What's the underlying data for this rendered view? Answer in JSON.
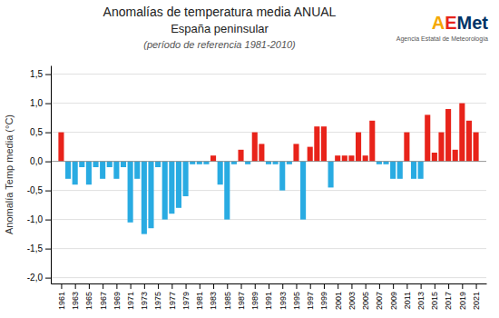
{
  "chart_data": {
    "type": "bar",
    "title": "Anomalías de temperatura media ANUAL",
    "subtitle": "España peninsular",
    "annotations": [
      "(período de referencia 1981-2010)",
      "AEMet",
      "Agencia Estatal de Meteorología"
    ],
    "y_label": "Anomalía Temp media (°C)",
    "x": [
      1961,
      1962,
      1963,
      1964,
      1965,
      1966,
      1967,
      1968,
      1969,
      1970,
      1971,
      1972,
      1973,
      1974,
      1975,
      1976,
      1977,
      1978,
      1979,
      1980,
      1981,
      1982,
      1983,
      1984,
      1985,
      1986,
      1987,
      1988,
      1989,
      1990,
      1991,
      1992,
      1993,
      1994,
      1995,
      1996,
      1997,
      1998,
      1999,
      2000,
      2001,
      2002,
      2003,
      2004,
      2005,
      2006,
      2007,
      2008,
      2009,
      2010,
      2011,
      2012,
      2013,
      2014,
      2015,
      2016,
      2017,
      2018,
      2019,
      2020,
      2021
    ],
    "values": [
      0.5,
      -0.3,
      -0.4,
      -0.1,
      -0.4,
      -0.1,
      -0.3,
      -0.1,
      -0.3,
      -0.1,
      -1.05,
      -0.3,
      -1.25,
      -1.15,
      -0.1,
      -1.0,
      -0.9,
      -0.8,
      -0.6,
      -0.05,
      -0.05,
      -0.05,
      0.1,
      -0.4,
      -1.0,
      -0.05,
      0.2,
      -0.05,
      0.5,
      0.3,
      -0.05,
      -0.05,
      -0.5,
      -0.05,
      0.3,
      -1.0,
      0.25,
      0.6,
      0.6,
      -0.45,
      0.1,
      0.1,
      0.1,
      0.5,
      0.1,
      0.7,
      -0.05,
      -0.05,
      -0.3,
      -0.3,
      0.5,
      -0.3,
      -0.3,
      0.8,
      0.15,
      0.5,
      0.9,
      0.2,
      1.0,
      0.7,
      0.5
    ],
    "colors": [
      "#e8231a",
      "#29abe2",
      "#29abe2",
      "#29abe2",
      "#29abe2",
      "#29abe2",
      "#29abe2",
      "#29abe2",
      "#29abe2",
      "#29abe2",
      "#29abe2",
      "#29abe2",
      "#29abe2",
      "#29abe2",
      "#29abe2",
      "#29abe2",
      "#29abe2",
      "#29abe2",
      "#29abe2",
      "#29abe2",
      "#29abe2",
      "#29abe2",
      "#e8231a",
      "#29abe2",
      "#29abe2",
      "#29abe2",
      "#e8231a",
      "#29abe2",
      "#e8231a",
      "#e8231a",
      "#29abe2",
      "#29abe2",
      "#29abe2",
      "#29abe2",
      "#e8231a",
      "#29abe2",
      "#e8231a",
      "#e8231a",
      "#e8231a",
      "#29abe2",
      "#e8231a",
      "#e8231a",
      "#e8231a",
      "#e8231a",
      "#e8231a",
      "#e8231a",
      "#29abe2",
      "#29abe2",
      "#29abe2",
      "#29abe2",
      "#e8231a",
      "#29abe2",
      "#29abe2",
      "#e8231a",
      "#e8231a",
      "#e8231a",
      "#e8231a",
      "#e8231a",
      "#e8231a",
      "#e8231a",
      "#e8231a"
    ],
    "xlim": [
      1959.5,
      2022.5
    ],
    "xticks": [
      1961,
      1963,
      1965,
      1967,
      1969,
      1971,
      1973,
      1975,
      1977,
      1979,
      1981,
      1983,
      1985,
      1987,
      1989,
      1991,
      1993,
      1995,
      1997,
      1999,
      2001,
      2003,
      2005,
      2007,
      2009,
      2011,
      2013,
      2015,
      2017,
      2019,
      2021
    ],
    "ylim": [
      -2.1,
      1.65
    ],
    "yticks": [
      {
        "value": -2.0,
        "label": "-2,0"
      },
      {
        "value": -1.5,
        "label": "-1,5"
      },
      {
        "value": -1.0,
        "label": "-1,0"
      },
      {
        "value": -0.5,
        "label": "-0,5"
      },
      {
        "value": 0.0,
        "label": "0,0"
      },
      {
        "value": 0.5,
        "label": "0,5"
      },
      {
        "value": 1.0,
        "label": "1,0"
      },
      {
        "value": 1.5,
        "label": "1,5"
      }
    ],
    "grid": true
  }
}
